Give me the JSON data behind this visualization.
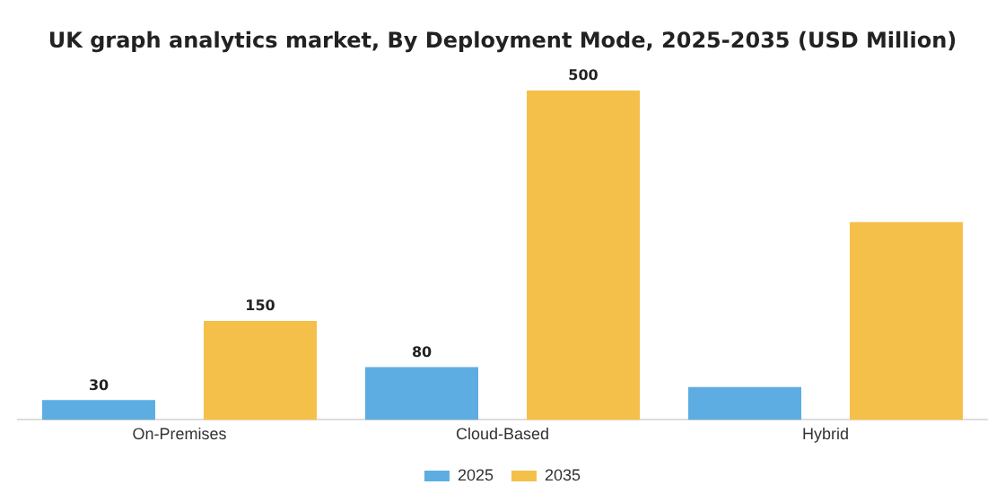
{
  "chart_data": {
    "type": "bar",
    "title": "UK graph analytics market, By Deployment Mode, 2025-2035 (USD Million)",
    "categories": [
      "On-Premises",
      "Cloud-Based",
      "Hybrid"
    ],
    "series": [
      {
        "name": "2025",
        "color": "#5dade2",
        "values": [
          30,
          80,
          50
        ],
        "value_labels": [
          "30",
          "80",
          null
        ]
      },
      {
        "name": "2035",
        "color": "#f5c04a",
        "values": [
          150,
          500,
          300
        ],
        "value_labels": [
          "150",
          "500",
          null
        ]
      }
    ],
    "legend": "bottom",
    "grid": false,
    "tick_labels": "x"
  }
}
